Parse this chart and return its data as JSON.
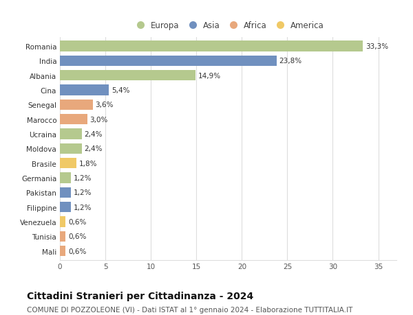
{
  "countries": [
    "Mali",
    "Tunisia",
    "Venezuela",
    "Filippine",
    "Pakistan",
    "Germania",
    "Brasile",
    "Moldova",
    "Ucraina",
    "Marocco",
    "Senegal",
    "Cina",
    "Albania",
    "India",
    "Romania"
  ],
  "values": [
    0.6,
    0.6,
    0.6,
    1.2,
    1.2,
    1.2,
    1.8,
    2.4,
    2.4,
    3.0,
    3.6,
    5.4,
    14.9,
    23.8,
    33.3
  ],
  "labels": [
    "0,6%",
    "0,6%",
    "0,6%",
    "1,2%",
    "1,2%",
    "1,2%",
    "1,8%",
    "2,4%",
    "2,4%",
    "3,0%",
    "3,6%",
    "5,4%",
    "14,9%",
    "23,8%",
    "33,3%"
  ],
  "continents": [
    "Africa",
    "Africa",
    "America",
    "Asia",
    "Asia",
    "Europa",
    "America",
    "Europa",
    "Europa",
    "Africa",
    "Africa",
    "Asia",
    "Europa",
    "Asia",
    "Europa"
  ],
  "continent_colors": {
    "Europa": "#b5c98e",
    "Asia": "#7090bf",
    "Africa": "#e8a87c",
    "America": "#f0c966"
  },
  "legend_order": [
    "Europa",
    "Asia",
    "Africa",
    "America"
  ],
  "title": "Cittadini Stranieri per Cittadinanza - 2024",
  "subtitle": "COMUNE DI POZZOLEONE (VI) - Dati ISTAT al 1° gennaio 2024 - Elaborazione TUTTITALIA.IT",
  "xlim": [
    0,
    37
  ],
  "xticks": [
    0,
    5,
    10,
    15,
    20,
    25,
    30,
    35
  ],
  "bg_color": "#ffffff",
  "grid_color": "#dddddd",
  "bar_height": 0.72,
  "title_fontsize": 10,
  "subtitle_fontsize": 7.5,
  "label_fontsize": 7.5,
  "tick_fontsize": 7.5,
  "legend_fontsize": 8.5
}
